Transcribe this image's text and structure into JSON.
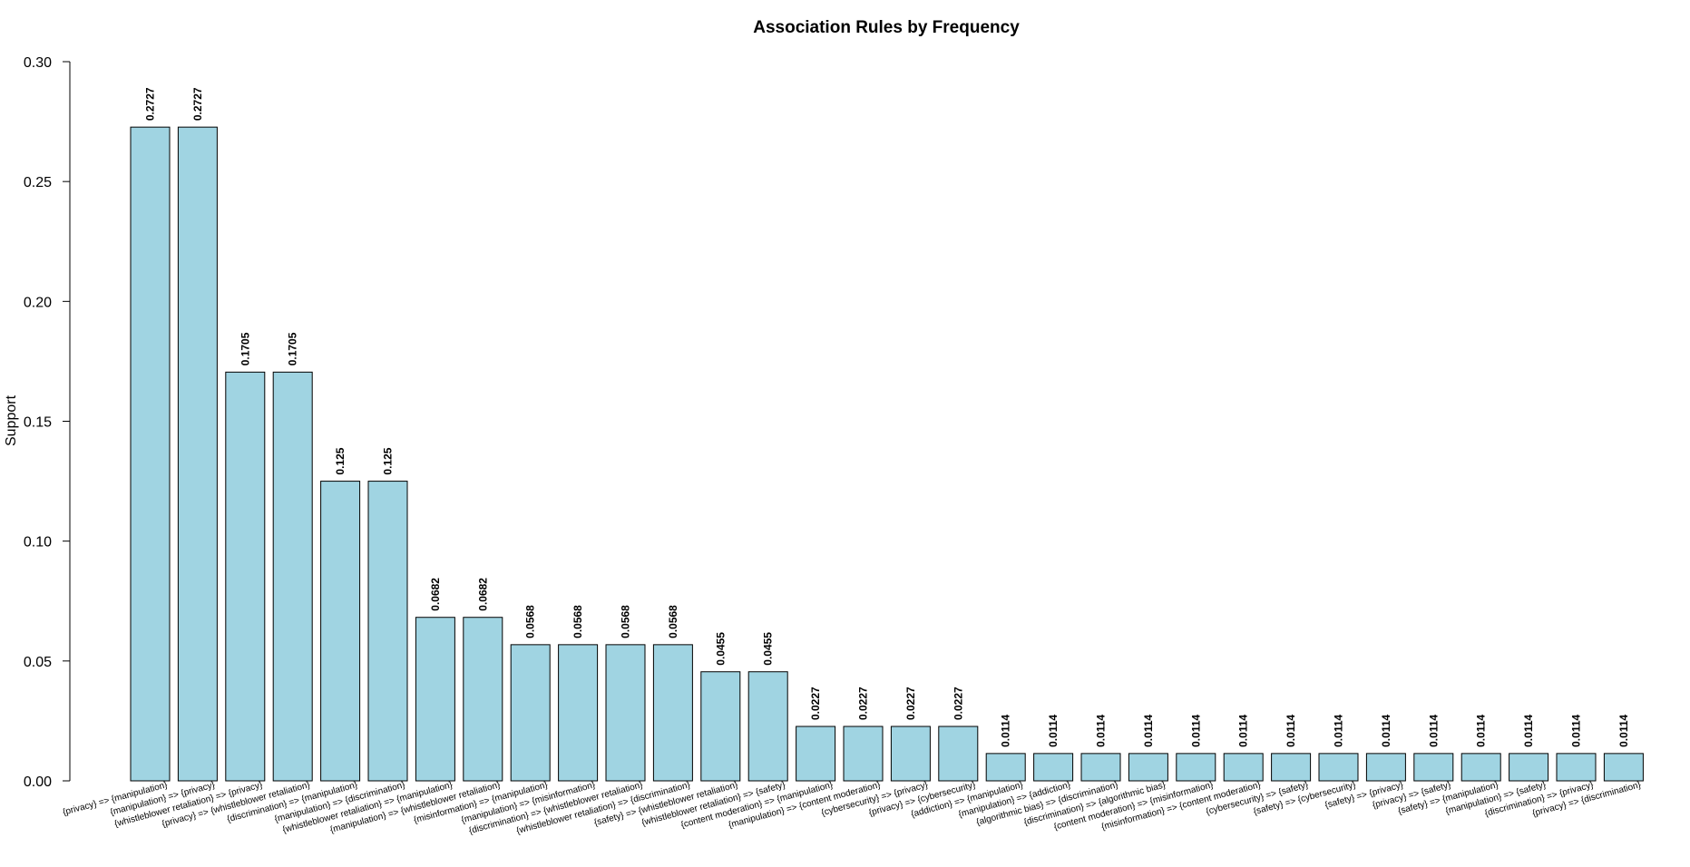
{
  "chart_data": {
    "type": "bar",
    "title": "Association Rules by Frequency",
    "xlabel": "",
    "ylabel": "Support",
    "ylim": [
      0,
      0.3
    ],
    "yticks": [
      "0.00",
      "0.05",
      "0.10",
      "0.15",
      "0.20",
      "0.25",
      "0.30"
    ],
    "bar_color": "#A0D4E2",
    "grid": false,
    "categories": [
      "{privacy} => {manipulation}",
      "{manipulation} => {privacy}",
      "{whistleblower retaliation} => {privacy}",
      "{privacy} => {whistleblower retaliation}",
      "{discrimination} => {manipulation}",
      "{manipulation} => {discrimination}",
      "{whistleblower retaliation} => {manipulation}",
      "{manipulation} => {whistleblower retaliation}",
      "{misinformation} => {manipulation}",
      "{manipulation} => {misinformation}",
      "{discrimination} => {whistleblower retaliation}",
      "{whistleblower retaliation} => {discrimination}",
      "{safety} => {whistleblower retaliation}",
      "{whistleblower retaliation} => {safety}",
      "{content moderation} => {manipulation}",
      "{manipulation} => {content moderation}",
      "{cybersecurity} => {privacy}",
      "{privacy} => {cybersecurity}",
      "{addiction} => {manipulation}",
      "{manipulation} => {addiction}",
      "{algorithmic bias} => {discrimination}",
      "{discrimination} => {algorithmic bias}",
      "{content moderation} => {misinformation}",
      "{misinformation} => {content moderation}",
      "{cybersecurity} => {safety}",
      "{safety} => {cybersecurity}",
      "{safety} => {privacy}",
      "{privacy} => {safety}",
      "{safety} => {manipulation}",
      "{manipulation} => {safety}",
      "{discrimination} => {privacy}",
      "{privacy} => {discrimination}"
    ],
    "values": [
      0.2727,
      0.2727,
      0.1705,
      0.1705,
      0.125,
      0.125,
      0.0682,
      0.0682,
      0.0568,
      0.0568,
      0.0568,
      0.0568,
      0.0455,
      0.0455,
      0.0227,
      0.0227,
      0.0227,
      0.0227,
      0.0114,
      0.0114,
      0.0114,
      0.0114,
      0.0114,
      0.0114,
      0.0114,
      0.0114,
      0.0114,
      0.0114,
      0.0114,
      0.0114,
      0.0114,
      0.0114
    ],
    "value_labels": [
      "0.2727",
      "0.2727",
      "0.1705",
      "0.1705",
      "0.125",
      "0.125",
      "0.0682",
      "0.0682",
      "0.0568",
      "0.0568",
      "0.0568",
      "0.0568",
      "0.0455",
      "0.0455",
      "0.0227",
      "0.0227",
      "0.0227",
      "0.0227",
      "0.0114",
      "0.0114",
      "0.0114",
      "0.0114",
      "0.0114",
      "0.0114",
      "0.0114",
      "0.0114",
      "0.0114",
      "0.0114",
      "0.0114",
      "0.0114",
      "0.0114",
      "0.0114"
    ]
  }
}
